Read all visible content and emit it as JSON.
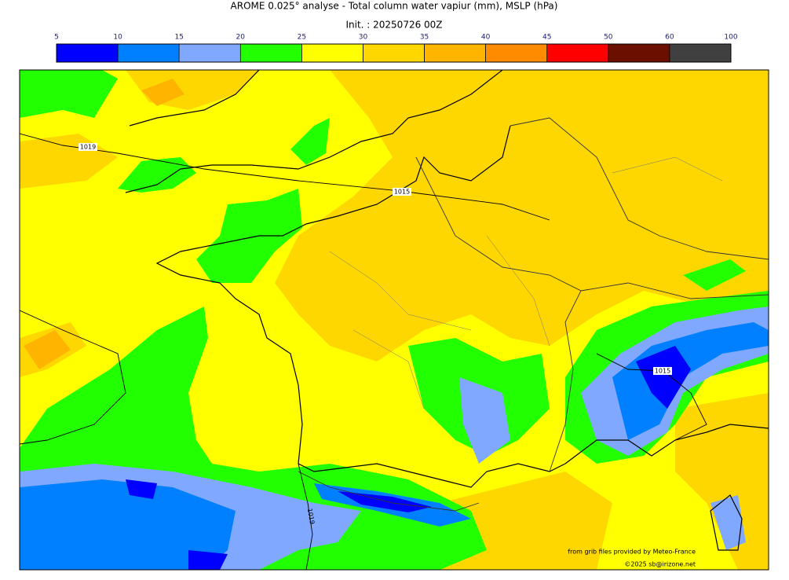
{
  "header": {
    "title": "AROME 0.025° analyse - Total column water vapiur (mm), MSLP (hPa)",
    "init": "Init. : 20250726 00Z"
  },
  "colorbar": {
    "ticks": [
      5,
      10,
      15,
      20,
      25,
      30,
      35,
      40,
      45,
      50,
      60,
      100
    ],
    "colors": [
      "#0000ff",
      "#0080ff",
      "#80a8ff",
      "#22ff00",
      "#ffff00",
      "#ffd700",
      "#ffb400",
      "#ff8c00",
      "#ff0000",
      "#6b0f00",
      "#404040"
    ]
  },
  "map": {
    "isobar_labels": [
      "1019",
      "1015",
      "1015",
      "1019"
    ]
  },
  "credits": {
    "source": "from grib files provided by Meteo-France",
    "copyright": "©2025 sb@irizone.net"
  }
}
